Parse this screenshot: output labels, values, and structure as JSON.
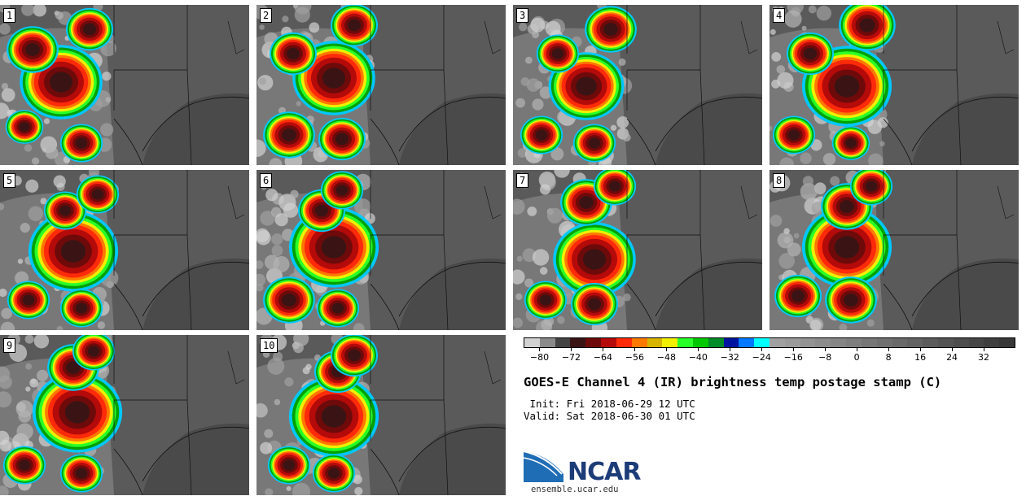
{
  "panels": [
    {
      "label": "1"
    },
    {
      "label": "2"
    },
    {
      "label": "3"
    },
    {
      "label": "4"
    },
    {
      "label": "5"
    },
    {
      "label": "6"
    },
    {
      "label": "7"
    },
    {
      "label": "8"
    },
    {
      "label": "9"
    },
    {
      "label": "10"
    }
  ],
  "colorbar": {
    "colors": [
      "#d2d2d2",
      "#8a8a8a",
      "#444444",
      "#3a1414",
      "#6e0a0a",
      "#b40a0a",
      "#ff2a0a",
      "#ff7800",
      "#d7b400",
      "#f0f000",
      "#28ff28",
      "#00c800",
      "#008c28",
      "#0014a0",
      "#0078ff",
      "#00ffff",
      "#a0a0a0",
      "#9a9a9a",
      "#939393",
      "#8c8c8c",
      "#858585",
      "#7e7e7e",
      "#777777",
      "#707070",
      "#696969",
      "#626262",
      "#5b5b5b",
      "#545454",
      "#4d4d4d",
      "#464646",
      "#3f3f3f",
      "#383838"
    ],
    "tick_values": [
      -80,
      -72,
      -64,
      -56,
      -48,
      -40,
      -32,
      -24,
      -16,
      -8,
      0,
      8,
      16,
      24,
      32
    ],
    "tick_labels": [
      "−80",
      "−72",
      "−64",
      "−56",
      "−48",
      "−40",
      "−32",
      "−24",
      "−16",
      "−8",
      "0",
      "8",
      "16",
      "24",
      "32"
    ],
    "min": -84,
    "max": 40
  },
  "title": "GOES-E Channel 4 (IR) brightness temp postage stamp (C)",
  "init_line": " Init: Fri 2018-06-29 12 UTC",
  "valid_line": "Valid: Sat 2018-06-30 01 UTC",
  "logo": {
    "text": "NCAR",
    "website": "ensemble.ucar.edu"
  }
}
